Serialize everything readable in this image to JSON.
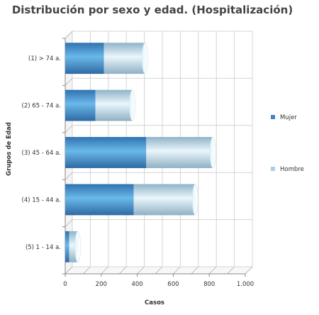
{
  "chart_data": {
    "type": "bar",
    "orientation": "horizontal",
    "stacked": true,
    "style": "3d-cylinder",
    "title": "Distribución por sexo y edad. (Hospitalización)",
    "xlabel": "Casos",
    "ylabel": "Grupos de Edad",
    "xlim": [
      0,
      1000
    ],
    "xticks": [
      "0",
      "200",
      "400",
      "600",
      "800",
      "1.000"
    ],
    "categories": [
      "(1) > 74 a.",
      "(2) 65 - 74 a.",
      "(3) 45 - 64 a.",
      "(4) 15 - 44 a.",
      "(5) 1 - 14 a."
    ],
    "series": [
      {
        "name": "Mujer",
        "values": [
          215,
          168,
          450,
          380,
          22
        ],
        "color": "#3f87c2"
      },
      {
        "name": "Hombre",
        "values": [
          228,
          205,
          370,
          342,
          48
        ],
        "color": "#a9cfe6"
      }
    ],
    "grid": true,
    "legend_position": "right"
  }
}
